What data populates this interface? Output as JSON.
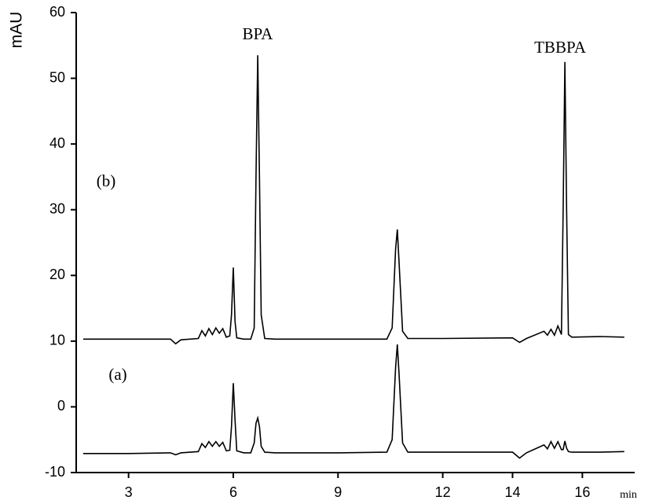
{
  "chart_data": {
    "type": "line",
    "y_label": "mAU",
    "x_label": "min",
    "annotations": [
      "BPA",
      "TBBPA"
    ],
    "x": [
      1.7,
      3,
      4.2,
      4.35,
      4.5,
      5.0,
      5.1,
      5.2,
      5.3,
      5.4,
      5.5,
      5.6,
      5.7,
      5.8,
      5.9,
      5.95,
      6.0,
      6.05,
      6.1,
      6.3,
      6.5,
      6.6,
      6.65,
      6.7,
      6.75,
      6.8,
      6.9,
      7.2,
      9,
      10.4,
      10.55,
      10.65,
      10.7,
      10.75,
      10.85,
      11.0,
      12,
      14.0,
      14.2,
      14.4,
      14.9,
      15.0,
      15.1,
      15.2,
      15.3,
      15.4,
      15.45,
      15.5,
      15.55,
      15.6,
      15.7,
      16.5,
      17.2
    ],
    "series": [
      {
        "name": "(b)",
        "color": "#000000",
        "values": [
          10.3,
          10.3,
          10.3,
          9.6,
          10.2,
          10.4,
          11.6,
          10.8,
          11.9,
          11.0,
          12.0,
          11.2,
          11.9,
          10.6,
          10.8,
          14,
          21.2,
          13,
          10.5,
          10.3,
          10.3,
          12,
          35,
          53.5,
          35,
          14,
          10.4,
          10.3,
          10.3,
          10.3,
          12,
          24,
          27,
          22,
          11.5,
          10.4,
          10.4,
          10.5,
          9.8,
          10.4,
          11.5,
          10.9,
          11.8,
          10.9,
          12.3,
          11,
          30,
          52.5,
          30,
          11,
          10.6,
          10.7,
          10.6
        ]
      },
      {
        "name": "(a)",
        "color": "#000000",
        "values": [
          -7.1,
          -7.1,
          -7.0,
          -7.3,
          -7.0,
          -6.8,
          -5.6,
          -6.2,
          -5.3,
          -6.0,
          -5.3,
          -6.0,
          -5.4,
          -6.7,
          -6.6,
          -3,
          3.6,
          -2,
          -6.7,
          -7.0,
          -7.0,
          -5.5,
          -2.5,
          -1.7,
          -3,
          -6,
          -6.9,
          -7.0,
          -7.0,
          -6.9,
          -5,
          6,
          9.5,
          5,
          -5.5,
          -6.9,
          -6.9,
          -6.9,
          -7.8,
          -7.0,
          -5.8,
          -6.4,
          -5.3,
          -6.3,
          -5.3,
          -6.5,
          -6.5,
          -5.2,
          -6.3,
          -6.8,
          -6.9,
          -6.9,
          -6.8
        ]
      }
    ],
    "xlim": [
      1.5,
      17.5
    ],
    "xticks": [
      3,
      6,
      9,
      12,
      14,
      16
    ],
    "ylim": [
      -10,
      60
    ],
    "yticks": [
      -10,
      0,
      10,
      20,
      30,
      40,
      50,
      60
    ],
    "grid": false
  }
}
